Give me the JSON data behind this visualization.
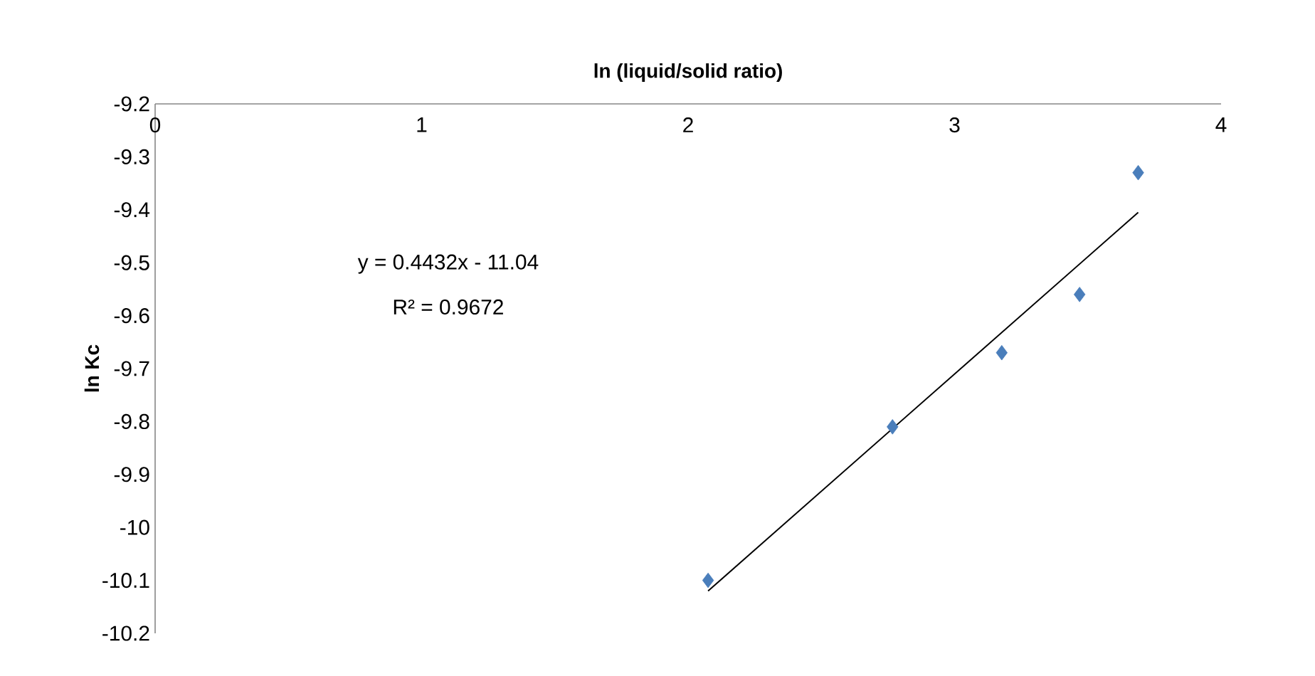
{
  "chart_data": {
    "type": "scatter",
    "xlabel": "ln (liquid/solid ratio)",
    "ylabel": "ln Kc",
    "annotations": [
      "y = 0.4432x - 11.04",
      "R² = 0.9672"
    ],
    "xlim": [
      0,
      4
    ],
    "xticks": [
      0,
      1,
      2,
      3,
      4
    ],
    "ylim": [
      -10.2,
      -9.2
    ],
    "yticks": [
      -10.2,
      -10.1,
      -10,
      -9.9,
      -9.8,
      -9.7,
      -9.6,
      -9.5,
      -9.4,
      -9.3,
      -9.2
    ],
    "marker": "diamond",
    "series": [
      {
        "color": "#4a7ebb",
        "x": [
          2.075,
          2.767,
          3.177,
          3.469,
          3.689
        ],
        "values": [
          -10.1,
          -9.81,
          -9.67,
          -9.56,
          -9.33
        ]
      },
      {
        "type": "line",
        "color": "#000000",
        "marker": "none",
        "x": [
          2.075,
          3.689
        ],
        "values": [
          -10.12,
          -9.405
        ]
      }
    ]
  }
}
